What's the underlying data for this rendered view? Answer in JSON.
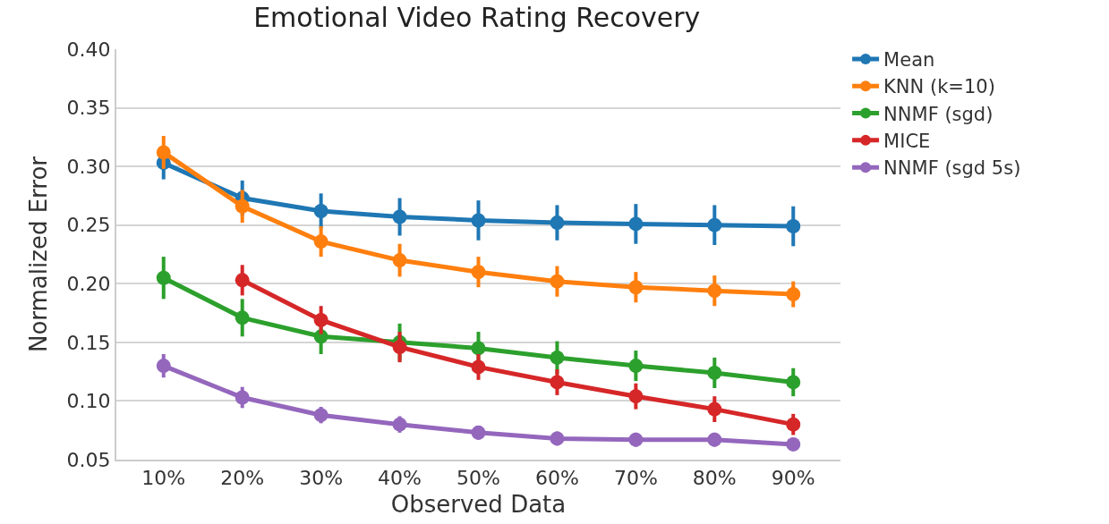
{
  "chart_data": {
    "type": "line",
    "title": "Emotional Video Rating Recovery",
    "xlabel": "Observed Data",
    "ylabel": "Normalized Error",
    "categories": [
      "10%",
      "20%",
      "30%",
      "40%",
      "50%",
      "60%",
      "70%",
      "80%",
      "90%"
    ],
    "series": [
      {
        "name": "Mean",
        "color": "#1f77b4",
        "values": [
          0.303,
          0.273,
          0.262,
          0.257,
          0.254,
          0.252,
          0.251,
          0.25,
          0.249
        ],
        "errors": [
          0.014,
          0.015,
          0.015,
          0.016,
          0.017,
          0.015,
          0.017,
          0.017,
          0.017
        ]
      },
      {
        "name": "KNN (k=10)",
        "color": "#ff7f0e",
        "values": [
          0.312,
          0.266,
          0.236,
          0.22,
          0.21,
          0.202,
          0.197,
          0.194,
          0.191
        ],
        "errors": [
          0.014,
          0.014,
          0.013,
          0.014,
          0.013,
          0.013,
          0.013,
          0.013,
          0.011
        ]
      },
      {
        "name": "NNMF (sgd)",
        "color": "#2ca02c",
        "values": [
          0.205,
          0.171,
          0.155,
          0.15,
          0.145,
          0.137,
          0.13,
          0.124,
          0.116
        ],
        "errors": [
          0.018,
          0.016,
          0.015,
          0.016,
          0.014,
          0.014,
          0.013,
          0.013,
          0.012
        ]
      },
      {
        "name": "MICE",
        "color": "#d62728",
        "values": [
          null,
          0.203,
          0.169,
          0.146,
          0.129,
          0.116,
          0.104,
          0.093,
          0.08
        ],
        "errors": [
          null,
          0.013,
          0.012,
          0.013,
          0.011,
          0.011,
          0.011,
          0.011,
          0.009
        ]
      },
      {
        "name": "NNMF (sgd 5s)",
        "color": "#9467bd",
        "values": [
          0.13,
          0.103,
          0.088,
          0.08,
          0.073,
          0.068,
          0.067,
          0.067,
          0.063
        ],
        "errors": [
          0.01,
          0.009,
          0.007,
          0.007,
          0.006,
          0.006,
          0.006,
          0.006,
          0.005
        ]
      }
    ],
    "ylim": [
      0.05,
      0.4
    ],
    "yticks": [
      {
        "value": 0.05,
        "label": "0.05"
      },
      {
        "value": 0.1,
        "label": "0.10"
      },
      {
        "value": 0.15,
        "label": "0.15"
      },
      {
        "value": 0.2,
        "label": "0.20"
      },
      {
        "value": 0.25,
        "label": "0.25"
      },
      {
        "value": 0.3,
        "label": "0.30"
      },
      {
        "value": 0.35,
        "label": "0.35"
      },
      {
        "value": 0.4,
        "label": "0.40"
      }
    ],
    "grid": "y",
    "legend": "top right",
    "marker": "circle",
    "line_style": "solid"
  }
}
